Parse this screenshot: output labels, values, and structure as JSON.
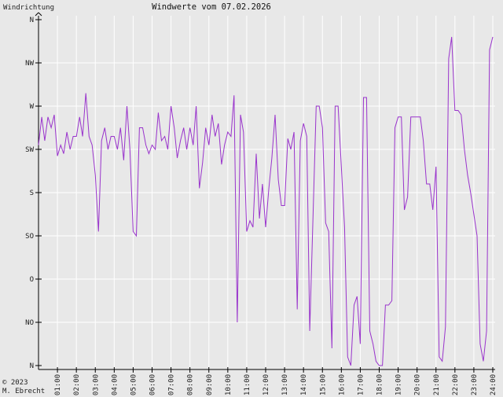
{
  "chart_data": {
    "type": "line",
    "title": "Windwerte vom 07.02.2026",
    "ylabel": "Windrichtung",
    "y_categories": [
      "N",
      "NO",
      "O",
      "SO",
      "S",
      "SW",
      "W",
      "NW",
      "N"
    ],
    "y_axis_note": "compass directions, 0 = N at bottom, 8 = N at top (45° per step)",
    "x_ticks": [
      "01:00",
      "02:00",
      "03:00",
      "04:00",
      "05:00",
      "06:00",
      "07:00",
      "08:00",
      "09:00",
      "10:00",
      "11:00",
      "12:00",
      "13:00",
      "14:00",
      "15:00",
      "16:00",
      "17:00",
      "18:00",
      "19:00",
      "20:00",
      "21:00",
      "22:00",
      "23:00",
      "24:00"
    ],
    "xlim": [
      0,
      24
    ],
    "ylim": [
      0,
      8
    ],
    "grid": true,
    "line_color": "#9933cc",
    "series": [
      {
        "x": [
          0.0,
          0.17,
          0.33,
          0.5,
          0.67,
          0.83,
          1.0,
          1.17,
          1.33,
          1.5,
          1.67,
          1.83,
          2.0,
          2.17,
          2.33,
          2.5,
          2.67,
          2.83,
          3.0,
          3.17,
          3.33,
          3.5,
          3.67,
          3.83,
          4.0,
          4.17,
          4.33,
          4.5,
          4.67,
          4.83,
          5.0,
          5.17,
          5.33,
          5.5,
          5.67,
          5.83,
          6.0,
          6.17,
          6.33,
          6.5,
          6.67,
          6.83,
          7.0,
          7.17,
          7.33,
          7.5,
          7.67,
          7.83,
          8.0,
          8.17,
          8.33,
          8.5,
          8.67,
          8.83,
          9.0,
          9.17,
          9.33,
          9.5,
          9.67,
          9.83,
          10.0,
          10.17,
          10.33,
          10.5,
          10.67,
          10.83,
          11.0,
          11.17,
          11.33,
          11.5,
          11.67,
          11.83,
          12.0,
          12.17,
          12.33,
          12.5,
          12.67,
          12.83,
          13.0,
          13.17,
          13.33,
          13.5,
          13.67,
          13.83,
          14.0,
          14.17,
          14.33,
          14.5,
          14.67,
          14.83,
          15.0,
          15.17,
          15.33,
          15.5,
          15.67,
          15.83,
          16.0,
          16.17,
          16.33,
          16.5,
          16.67,
          16.83,
          17.0,
          17.17,
          17.33,
          17.5,
          17.67,
          17.83,
          18.0,
          18.17,
          18.33,
          18.5,
          18.67,
          18.83,
          19.0,
          19.17,
          19.33,
          19.5,
          19.67,
          19.83,
          20.0,
          20.17,
          20.33,
          20.5,
          20.67,
          20.83,
          21.0,
          21.17,
          21.33,
          21.5,
          21.67,
          21.83,
          22.0,
          22.17,
          22.33,
          22.5,
          22.67,
          22.83,
          23.0,
          23.17,
          23.33,
          23.5,
          23.67,
          23.83,
          24.0
        ],
        "values": [
          5.1,
          5.75,
          5.2,
          5.75,
          5.5,
          5.8,
          4.85,
          5.1,
          4.9,
          5.4,
          5.0,
          5.3,
          5.3,
          5.75,
          5.3,
          6.3,
          5.3,
          5.1,
          4.4,
          3.1,
          5.2,
          5.5,
          5.0,
          5.3,
          5.3,
          5.0,
          5.5,
          4.75,
          6.0,
          5.0,
          3.1,
          3.0,
          5.5,
          5.5,
          5.1,
          4.9,
          5.1,
          5.0,
          5.85,
          5.2,
          5.3,
          5.0,
          6.0,
          5.5,
          4.8,
          5.2,
          5.5,
          5.0,
          5.5,
          5.1,
          6.0,
          4.1,
          4.7,
          5.5,
          5.1,
          5.8,
          5.3,
          5.6,
          4.65,
          5.1,
          5.4,
          5.3,
          6.25,
          1.0,
          5.8,
          5.4,
          3.1,
          3.35,
          3.2,
          4.9,
          3.4,
          4.2,
          3.2,
          4.1,
          4.8,
          5.8,
          4.3,
          3.7,
          3.7,
          5.25,
          5.0,
          5.4,
          1.3,
          5.2,
          5.6,
          5.3,
          0.8,
          3.4,
          6.0,
          6.0,
          5.5,
          3.3,
          3.1,
          0.4,
          6.0,
          6.0,
          4.6,
          3.2,
          0.2,
          0.0,
          1.4,
          1.6,
          0.5,
          6.2,
          6.2,
          0.8,
          0.5,
          0.1,
          0.0,
          0.0,
          1.4,
          1.4,
          1.5,
          5.5,
          5.75,
          5.75,
          3.6,
          3.9,
          5.75,
          5.75,
          5.75,
          5.75,
          5.2,
          4.2,
          4.2,
          3.6,
          4.6,
          0.2,
          0.1,
          0.9,
          7.1,
          7.6,
          5.9,
          5.9,
          5.8,
          5.0,
          4.4,
          4.0,
          3.5,
          3.0,
          0.5,
          0.1,
          0.8,
          7.3,
          7.6
        ]
      }
    ]
  },
  "copyright": "© 2023\nM. Ebrecht"
}
